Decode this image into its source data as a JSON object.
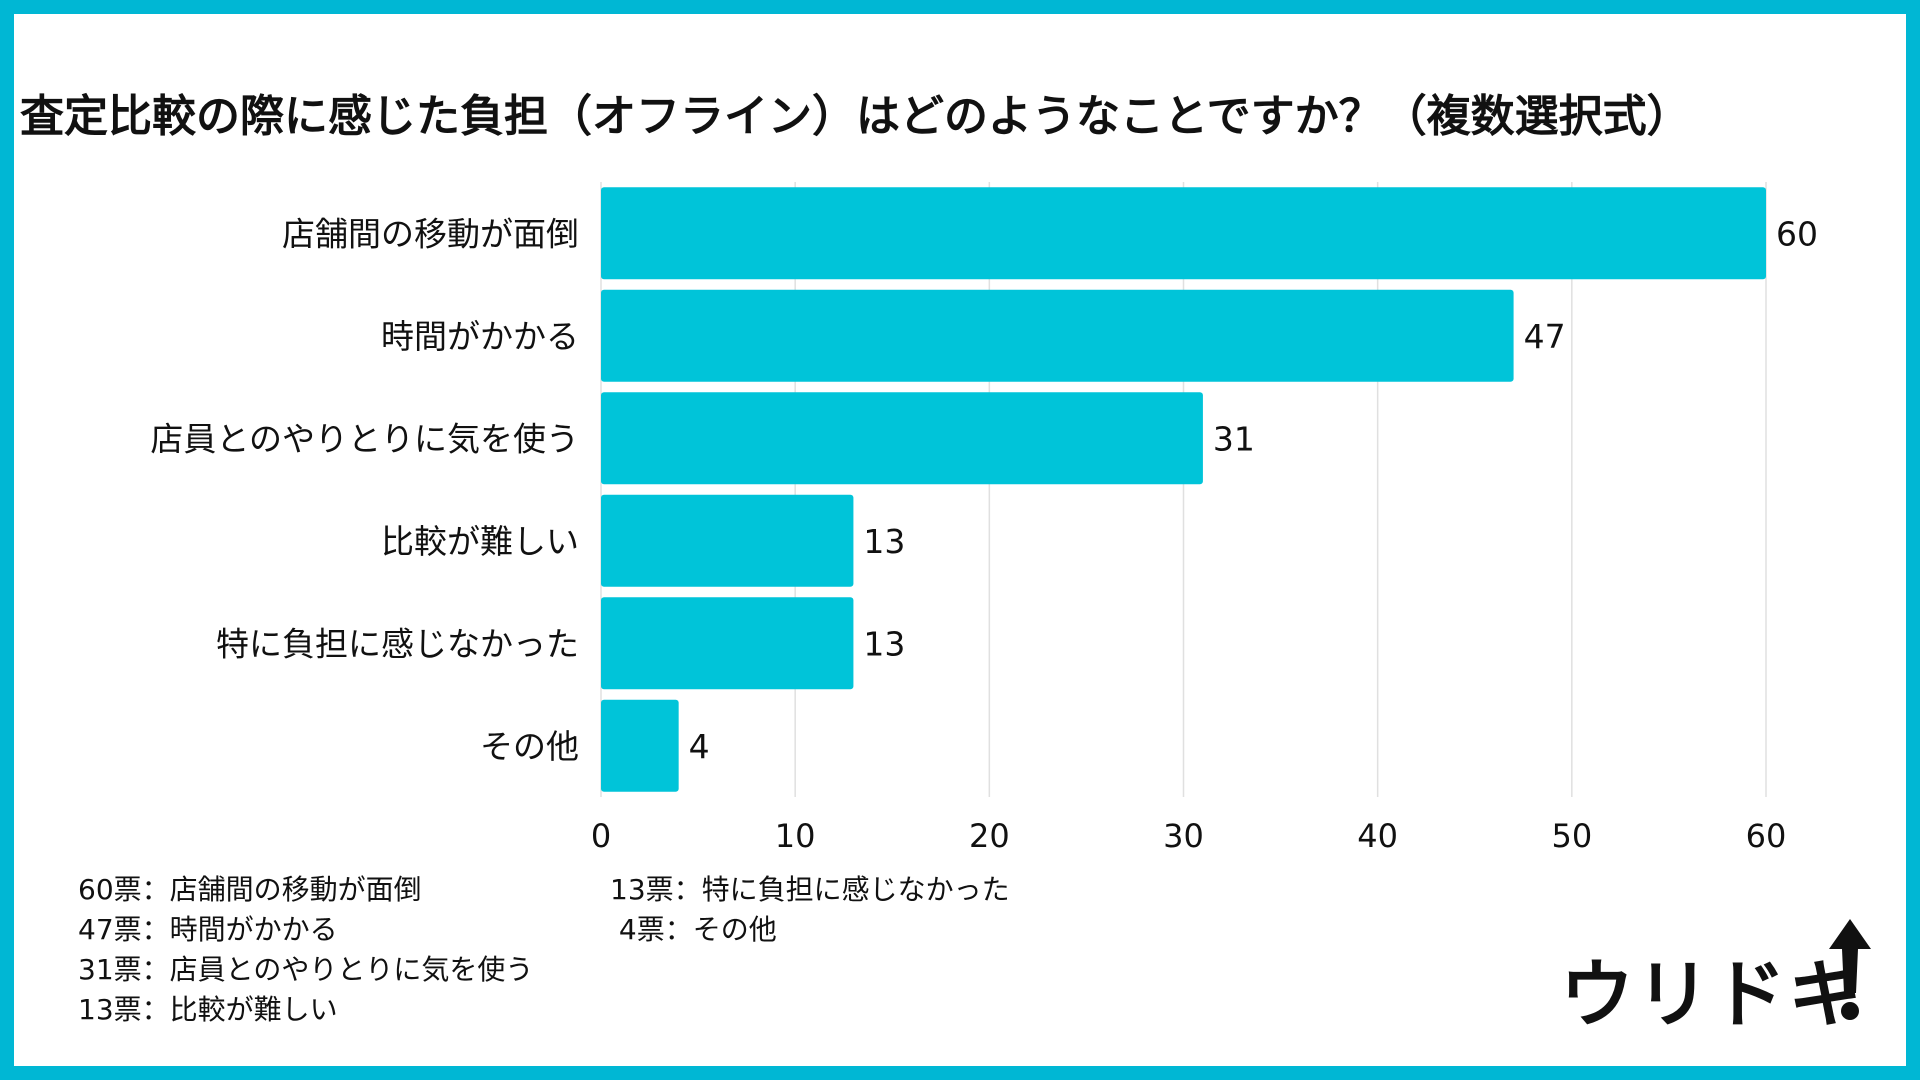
{
  "chart_data": {
    "type": "bar",
    "orientation": "horizontal",
    "title": "査定比較の際に感じた負担（オフライン）はどのようなことですか？（複数選択式）",
    "categories": [
      "店舗間の移動が面倒",
      "時間がかかる",
      "店員とのやりとりに気を使う",
      "比較が難しい",
      "特に負担に感じなかった",
      "その他"
    ],
    "values": [
      60,
      47,
      31,
      13,
      13,
      4
    ],
    "xlim": [
      0,
      60
    ],
    "xticks": [
      0,
      10,
      20,
      30,
      40,
      50,
      60
    ],
    "xticklabels": [
      "0",
      "10",
      "20",
      "30",
      "40",
      "50",
      "60"
    ],
    "grid": true,
    "bar_color": "#00c4d9"
  },
  "legend_left": [
    "60票：店舗間の移動が面倒",
    "47票：時間がかかる",
    "31票：店員とのやりとりに気を使う",
    "13票：比較が難しい"
  ],
  "legend_right": [
    "13票：特に負担に感じなかった",
    " 4票：その他"
  ],
  "logo": {
    "text": "ウリドキ",
    "icon": "up-arrow-icon"
  },
  "colors": {
    "border": "#00b7d4",
    "bar": "#00c4d9",
    "grid": "#e0e0e0",
    "text": "#111111"
  }
}
